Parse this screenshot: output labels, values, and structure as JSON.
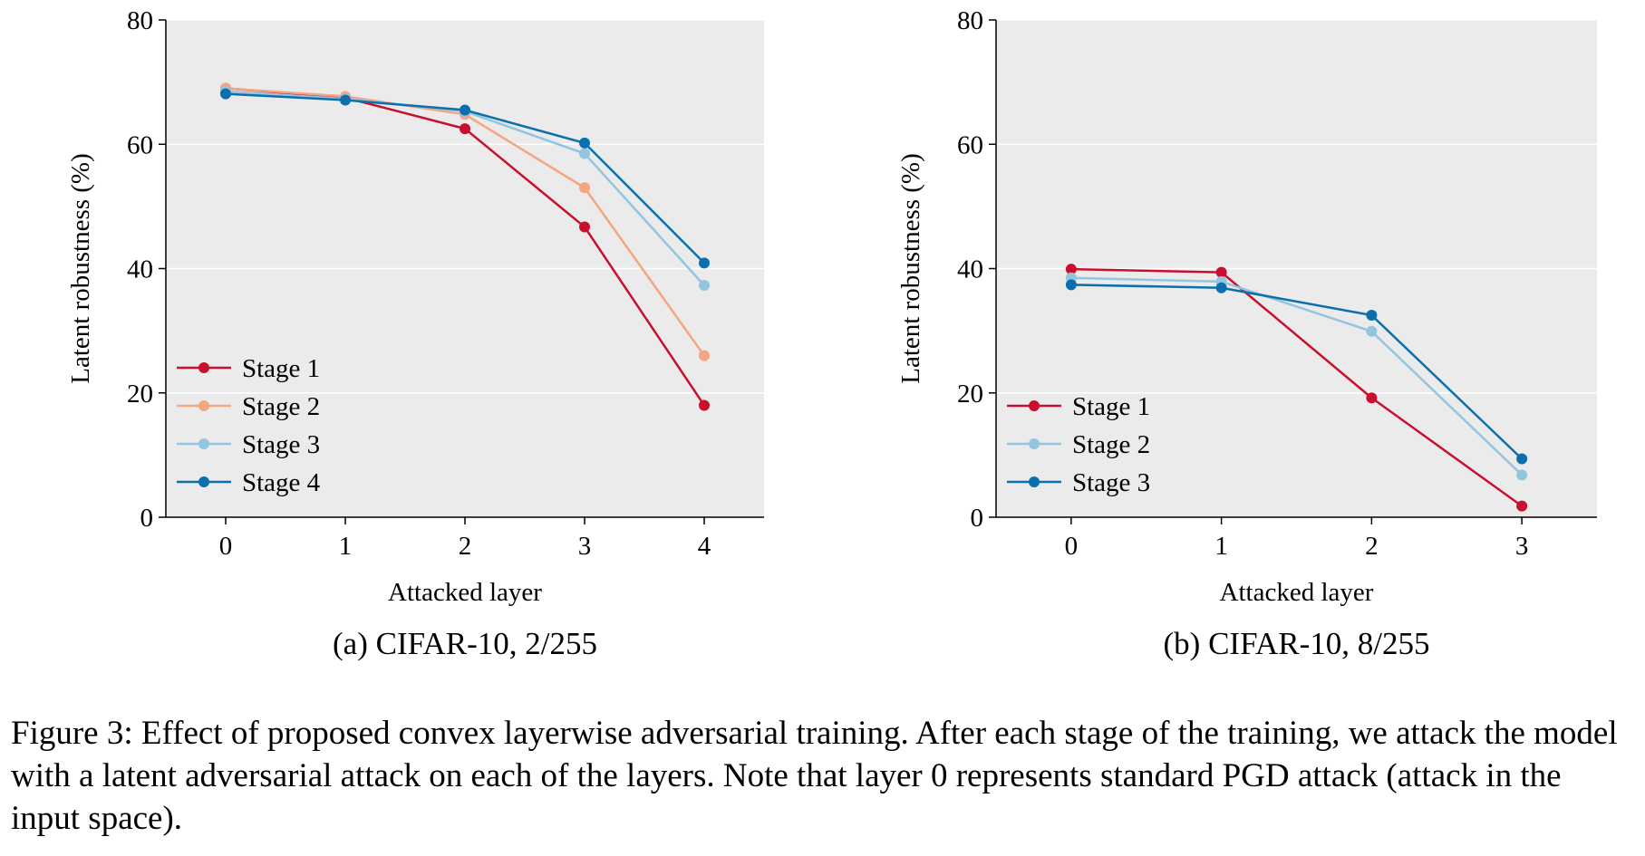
{
  "chart_data": [
    {
      "type": "line",
      "subcaption": "(a) CIFAR-10, 2/255",
      "xlabel": "Attacked layer",
      "ylabel": "Latent robustness (%)",
      "x": [
        0,
        1,
        2,
        3,
        4
      ],
      "xlim": [
        -0.5,
        4.5
      ],
      "ylim": [
        0,
        80
      ],
      "yticks": [
        0,
        20,
        40,
        60,
        80
      ],
      "grid": true,
      "legend_position": "lower-left",
      "series": [
        {
          "name": "Stage 1",
          "color": "#c8102e",
          "values": [
            69.0,
            67.5,
            62.5,
            46.7,
            18.0
          ]
        },
        {
          "name": "Stage 2",
          "color": "#f4a582",
          "values": [
            69.0,
            67.7,
            64.8,
            53.0,
            26.0
          ]
        },
        {
          "name": "Stage 3",
          "color": "#92c5de",
          "values": [
            68.5,
            67.3,
            65.3,
            58.5,
            37.3
          ]
        },
        {
          "name": "Stage 4",
          "color": "#0c6fad",
          "values": [
            68.1,
            67.1,
            65.5,
            60.2,
            40.9
          ]
        }
      ]
    },
    {
      "type": "line",
      "subcaption": "(b) CIFAR-10, 8/255",
      "xlabel": "Attacked layer",
      "ylabel": "Latent robustness (%)",
      "x": [
        0,
        1,
        2,
        3
      ],
      "xlim": [
        -0.5,
        3.5
      ],
      "ylim": [
        0,
        80
      ],
      "yticks": [
        0,
        20,
        40,
        60,
        80
      ],
      "grid": true,
      "legend_position": "lower-left",
      "series": [
        {
          "name": "Stage 1",
          "color": "#c8102e",
          "values": [
            39.9,
            39.4,
            19.2,
            1.8
          ]
        },
        {
          "name": "Stage 2",
          "color": "#92c5de",
          "values": [
            38.5,
            37.9,
            29.9,
            6.8
          ]
        },
        {
          "name": "Stage 3",
          "color": "#0c6fad",
          "values": [
            37.4,
            36.9,
            32.5,
            9.4
          ]
        }
      ]
    }
  ],
  "caption": "Figure 3: Effect of proposed convex layerwise adversarial training. After each stage of the training, we attack the model with a latent adversarial attack on each of the layers. Note that layer 0 represents standard PGD attack (attack in the input space)."
}
